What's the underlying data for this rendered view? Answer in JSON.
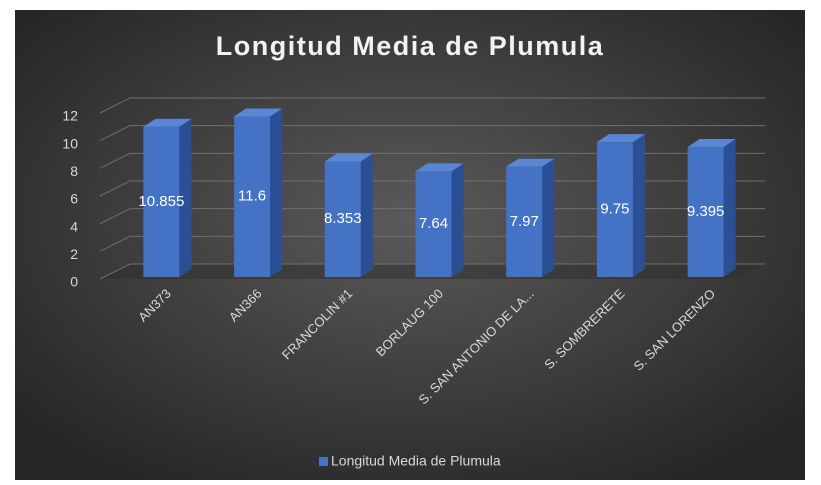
{
  "chart_data": {
    "type": "bar3d",
    "title": "Longitud Media de Plumula",
    "categories": [
      "AN373",
      "AN366",
      "FRANCOLIN #1",
      "BORLAUG 100",
      "S. SAN ANTONIO DE LA...",
      "S. SOMBRERETE",
      "S. SAN LORENZO"
    ],
    "series": [
      {
        "name": "Longitud Media de Plumula",
        "color": "#4472c4",
        "values": [
          10.855,
          11.6,
          8.353,
          7.64,
          7.97,
          9.75,
          9.395
        ]
      }
    ],
    "ylim": [
      0,
      12
    ],
    "yticks": [
      0,
      2,
      4,
      6,
      8,
      10,
      12
    ],
    "grid": true,
    "legend": "bottom"
  }
}
